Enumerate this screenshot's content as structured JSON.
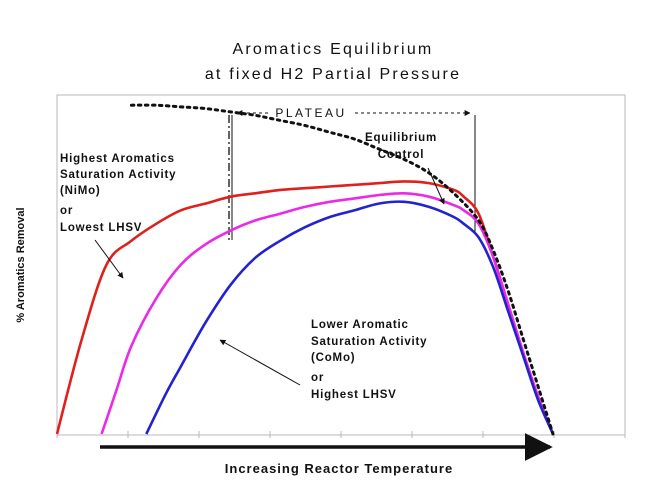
{
  "chart_data": {
    "type": "line",
    "title_lines": [
      "Aromatics Equilibrium",
      "at fixed H2 Partial Pressure"
    ],
    "xlabel": "Increasing Reactor Temperature",
    "ylabel": "% Aromatics Removal",
    "xlim": [
      0,
      100
    ],
    "ylim": [
      0,
      100
    ],
    "grid": false,
    "series": [
      {
        "name": "Highest Aromatics Saturation Activity (NiMo) or Lowest LHSV",
        "color": "#e0201c",
        "style": "solid",
        "x": [
          0,
          5,
          10,
          15,
          20,
          25,
          30,
          35,
          40,
          45,
          50,
          55,
          60,
          65,
          70,
          75,
          80,
          82,
          85,
          88,
          91,
          94,
          97,
          100
        ],
        "y": [
          0,
          28,
          50,
          57,
          62,
          66,
          68,
          70,
          71,
          72,
          72.5,
          73,
          73.5,
          74,
          74.5,
          74,
          72,
          70,
          65,
          52,
          38,
          24,
          11,
          0
        ]
      },
      {
        "name": "magenta",
        "color": "#ea2ae8",
        "style": "solid",
        "x": [
          9,
          12,
          15,
          20,
          25,
          30,
          35,
          40,
          45,
          50,
          55,
          60,
          65,
          70,
          75,
          80,
          82,
          85,
          88,
          91,
          94,
          97,
          100
        ],
        "y": [
          0,
          13,
          26,
          40,
          50,
          56,
          60,
          63,
          65,
          67,
          68.5,
          69.5,
          70.5,
          71,
          70,
          67.5,
          66,
          62,
          52,
          38,
          24,
          11,
          0
        ]
      },
      {
        "name": "Lower Aromatic Saturation Activity (CoMo) or Highest LHSV",
        "color": "#2222d0",
        "style": "solid",
        "x": [
          18,
          22,
          25,
          30,
          35,
          40,
          45,
          50,
          55,
          60,
          65,
          70,
          75,
          80,
          82,
          85,
          88,
          91,
          94,
          97,
          100
        ],
        "y": [
          0,
          12,
          20,
          33,
          44,
          52,
          57,
          61,
          64,
          66,
          68,
          68.5,
          67,
          64,
          62,
          58,
          49,
          36,
          23,
          10,
          0
        ]
      },
      {
        "name": "Equilibrium Control",
        "color": "#111111",
        "style": "dotted",
        "x": [
          15,
          20,
          25,
          30,
          35,
          40,
          45,
          50,
          55,
          60,
          65,
          70,
          75,
          80,
          85,
          88,
          91,
          94,
          97,
          100
        ],
        "y": [
          97,
          97,
          96.5,
          96,
          95,
          94,
          92.5,
          91,
          89,
          87,
          84,
          81,
          77,
          71,
          63,
          54,
          42,
          28,
          14,
          0
        ]
      }
    ]
  },
  "annotations": {
    "plateau": "PLATEAU",
    "equilibrium": [
      "Equilibrium",
      "Control"
    ],
    "highest": [
      "Highest Aromatics",
      " Saturation Activity",
      "(NiMo)",
      "or",
      "Lowest LHSV"
    ],
    "lower": [
      "Lower Aromatic",
      "Saturation Activity",
      "(CoMo)",
      "or",
      "Highest LHSV"
    ]
  }
}
